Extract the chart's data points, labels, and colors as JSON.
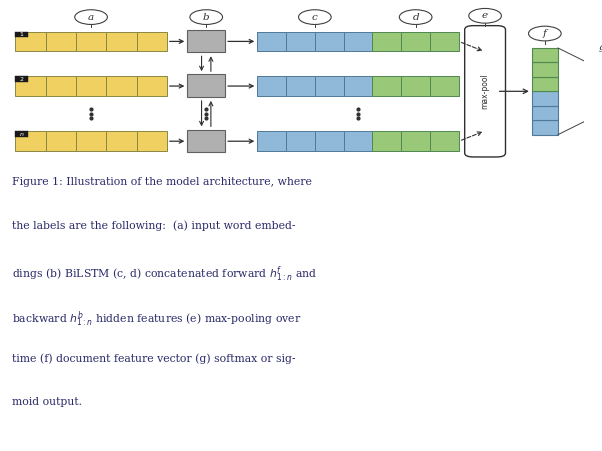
{
  "bg_color": "#ffffff",
  "fig_width": 6.02,
  "fig_height": 4.51,
  "yellow_color": "#F0D060",
  "yellow_edge": "#888844",
  "blue_color": "#90B8D8",
  "blue_edge": "#507898",
  "green_color": "#98C878",
  "green_edge": "#508850",
  "gray_color": "#B0B0B0",
  "gray_edge": "#606060",
  "white_color": "#FFFFFF",
  "white_edge": "#303030",
  "black_color": "#1a1a1a",
  "arrow_color": "#303030",
  "caption_color": "#2a2a6a",
  "caption_line1": "Figure 1: Illustration of the model architecture, where",
  "caption_line2": "the labels are the following:  (a) input word embed-",
  "caption_line3": "dings (b) BiLSTM (c, d) concatenated forward $h^f_{1:n}$ and",
  "caption_line4": "backward $h^b_{1:n}$ hidden features (e) max-pooling over",
  "caption_line5": "time (f) document feature vector (g) softmax or sig-",
  "caption_line6": "moid output."
}
